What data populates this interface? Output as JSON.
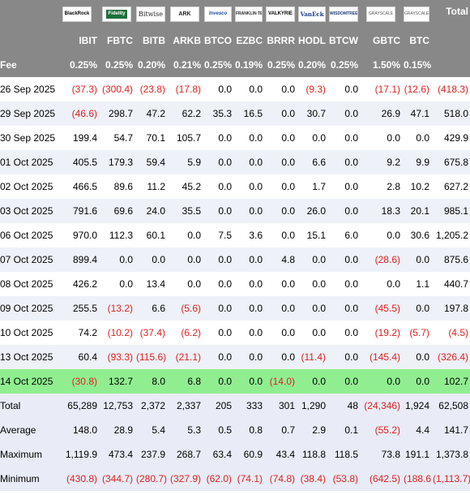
{
  "header": {
    "logos": [
      {
        "icon": "blackrock-logo",
        "text": "BlackRock"
      },
      {
        "icon": "fidelity-logo",
        "text": "Fidelity"
      },
      {
        "icon": "bitwise-logo",
        "text": "Bitwise"
      },
      {
        "icon": "ark-logo",
        "text": "ARK"
      },
      {
        "icon": "invesco-logo",
        "text": "Invesco"
      },
      {
        "icon": "franklin-templeton-logo",
        "text": "FRANKLIN TEMPLETON"
      },
      {
        "icon": "valkyrie-logo",
        "text": "VALKYRIE"
      },
      {
        "icon": "vaneck-logo",
        "text": "VanEck"
      },
      {
        "icon": "wisdomtree-logo",
        "text": "WISDOMTREE"
      },
      {
        "icon": "grayscale-logo",
        "text": "GRAYSCALE"
      },
      {
        "icon": "grayscale-logo",
        "text": "GRAYSCALE"
      }
    ],
    "total_label": "Total",
    "tickers": [
      "IBIT",
      "FBTC",
      "BITB",
      "ARKB",
      "BTCO",
      "EZBC",
      "BRRR",
      "HODL",
      "BTCW",
      "GBTC",
      "BTC"
    ],
    "fee_label": "Fee",
    "fees": [
      "0.25%",
      "0.25%",
      "0.20%",
      "0.21%",
      "0.25%",
      "0.19%",
      "0.25%",
      "0.20%",
      "0.25%",
      "1.50%",
      "0.15%"
    ]
  },
  "rows": [
    {
      "date": "26 Sep 2025",
      "values": [
        "(37.3)",
        "(300.4)",
        "(23.8)",
        "(17.8)",
        "0.0",
        "0.0",
        "0.0",
        "(9.3)",
        "0.0",
        "(17.1)",
        "(12.6)",
        "(418.3)"
      ]
    },
    {
      "date": "29 Sep 2025",
      "values": [
        "(46.6)",
        "298.7",
        "47.2",
        "62.2",
        "35.3",
        "16.5",
        "0.0",
        "30.7",
        "0.0",
        "26.9",
        "47.1",
        "518.0"
      ]
    },
    {
      "date": "30 Sep 2025",
      "values": [
        "199.4",
        "54.7",
        "70.1",
        "105.7",
        "0.0",
        "0.0",
        "0.0",
        "0.0",
        "0.0",
        "0.0",
        "0.0",
        "429.9"
      ]
    },
    {
      "date": "01 Oct 2025",
      "values": [
        "405.5",
        "179.3",
        "59.4",
        "5.9",
        "0.0",
        "0.0",
        "0.0",
        "6.6",
        "0.0",
        "9.2",
        "9.9",
        "675.8"
      ]
    },
    {
      "date": "02 Oct 2025",
      "values": [
        "466.5",
        "89.6",
        "11.2",
        "45.2",
        "0.0",
        "0.0",
        "0.0",
        "1.7",
        "0.0",
        "2.8",
        "10.2",
        "627.2"
      ]
    },
    {
      "date": "03 Oct 2025",
      "values": [
        "791.6",
        "69.6",
        "24.0",
        "35.5",
        "0.0",
        "0.0",
        "0.0",
        "26.0",
        "0.0",
        "18.3",
        "20.1",
        "985.1"
      ]
    },
    {
      "date": "06 Oct 2025",
      "values": [
        "970.0",
        "112.3",
        "60.1",
        "0.0",
        "7.5",
        "3.6",
        "0.0",
        "15.1",
        "6.0",
        "0.0",
        "30.6",
        "1,205.2"
      ]
    },
    {
      "date": "07 Oct 2025",
      "values": [
        "899.4",
        "0.0",
        "0.0",
        "0.0",
        "0.0",
        "0.0",
        "4.8",
        "0.0",
        "0.0",
        "(28.6)",
        "0.0",
        "875.6"
      ]
    },
    {
      "date": "08 Oct 2025",
      "values": [
        "426.2",
        "0.0",
        "13.4",
        "0.0",
        "0.0",
        "0.0",
        "0.0",
        "0.0",
        "0.0",
        "0.0",
        "1.1",
        "440.7"
      ]
    },
    {
      "date": "09 Oct 2025",
      "values": [
        "255.5",
        "(13.2)",
        "6.6",
        "(5.6)",
        "0.0",
        "0.0",
        "0.0",
        "0.0",
        "0.0",
        "(45.5)",
        "0.0",
        "197.8"
      ]
    },
    {
      "date": "10 Oct 2025",
      "values": [
        "74.2",
        "(10.2)",
        "(37.4)",
        "(6.2)",
        "0.0",
        "0.0",
        "0.0",
        "0.0",
        "0.0",
        "(19.2)",
        "(5.7)",
        "(4.5)"
      ]
    },
    {
      "date": "13 Oct 2025",
      "values": [
        "60.4",
        "(93.3)",
        "(115.6)",
        "(21.1)",
        "0.0",
        "0.0",
        "0.0",
        "(11.4)",
        "0.0",
        "(145.4)",
        "0.0",
        "(326.4)"
      ]
    },
    {
      "date": "14 Oct 2025",
      "values": [
        "(30.8)",
        "132.7",
        "8.0",
        "6.8",
        "0.0",
        "0.0",
        "(14.0)",
        "0.0",
        "0.0",
        "0.0",
        "0.0",
        "102.7"
      ]
    }
  ],
  "stats": [
    {
      "label": "Total",
      "values": [
        "65,289",
        "12,753",
        "2,372",
        "2,337",
        "205",
        "333",
        "301",
        "1,290",
        "48",
        "(24,346)",
        "1,924",
        "62,508"
      ]
    },
    {
      "label": "Average",
      "values": [
        "148.0",
        "28.9",
        "5.4",
        "5.3",
        "0.5",
        "0.8",
        "0.7",
        "2.9",
        "0.1",
        "(55.2)",
        "4.4",
        "141.7"
      ]
    },
    {
      "label": "Maximum",
      "values": [
        "1,119.9",
        "473.4",
        "237.9",
        "268.7",
        "63.4",
        "60.9",
        "43.4",
        "118.8",
        "118.5",
        "73.8",
        "191.1",
        "1,373.8"
      ]
    },
    {
      "label": "Minimum",
      "values": [
        "(430.8)",
        "(344.7)",
        "(280.7)",
        "(327.9)",
        "(62.0)",
        "(74.1)",
        "(74.8)",
        "(38.4)",
        "(53.8)",
        "(642.5)",
        "(188.6)",
        "(1,113.7)"
      ]
    }
  ],
  "colors": {
    "header_bg": "#888888",
    "negative": "#e0201f",
    "highlight_row": "#90ee90",
    "stripe": "#eef1f8"
  }
}
